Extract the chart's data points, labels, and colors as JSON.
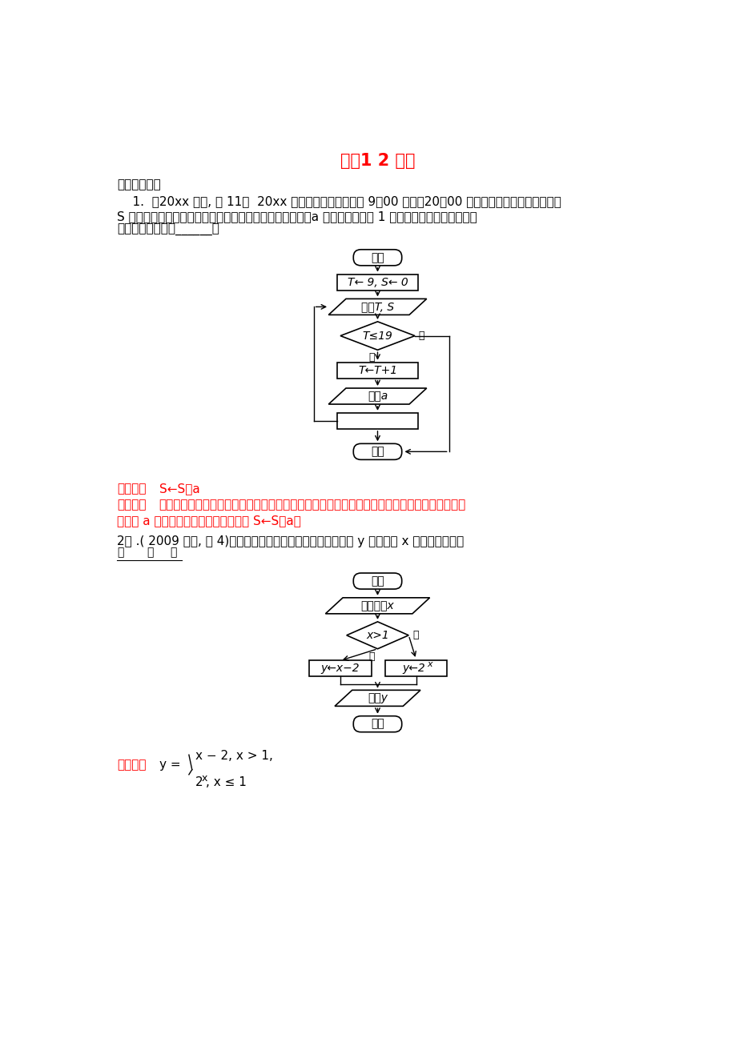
{
  "title": "专题1 2 算法",
  "title_color": "#FF0000",
  "bg_color": "#FFFFFF",
  "section1": "一．基础题组",
  "q1_line1": "    1.  。20xx 上海, 文 11〣  20xx 年上海世博会园区每天 9：00 开園，20：00 停止入園．在下边的框图中，",
  "q1_line2": "S 表示上海世博会官方网站在每个整点报道的入園总人数，a 表示整点报道前 1 个小时内入園人数，则空白",
  "q1_line3": "的执行框内应填入______．",
  "ans1_bracket": "【答案】",
  "ans1_content": "S←S＋a",
  "sol1_bracket": "【解析】",
  "sol1_line1": "由题意知，该程序框图的功能是统计每个整点报道的入園人数之和，所以应该把每个小时内入園",
  "sol1_line2": "的人数 a 进行累加，故该赋値语句应为 S←S＋a．",
  "q2_line1": "2． .( 2009 上海, 文 4)某算法的程序框图如图所示，则输出量 y 与输入量 x 满足的关系式是",
  "ans2_bracket": "【答案】",
  "fc1_start": "开始",
  "fc1_box1": "T← 9, S← 0",
  "fc1_io1_ch": "输出",
  "fc1_io1_var": "T, S",
  "fc1_d1": "T≤19",
  "fc1_yes": "是",
  "fc1_no": "否",
  "fc1_box2": "T←T+1",
  "fc1_io2_ch": "输入",
  "fc1_io2_var": "a",
  "fc1_end": "结束",
  "fc2_start": "开始",
  "fc2_io1_ch": "输入实数",
  "fc2_io1_var": "x",
  "fc2_d1": "x>1",
  "fc2_yes": "是",
  "fc2_no": "否",
  "fc2_box1_ch": "y←x−2",
  "fc2_box2_ch": "y←2",
  "fc2_box2_sup": "x",
  "fc2_io2_ch": "输出",
  "fc2_io2_var": "y",
  "fc2_end": "结束",
  "ans2_y_eq": "y =",
  "ans2_upper": "x − 2, x > 1,",
  "ans2_lower_base": "2",
  "ans2_lower_sup": "x",
  "ans2_lower_rest": ", x ≤ 1"
}
